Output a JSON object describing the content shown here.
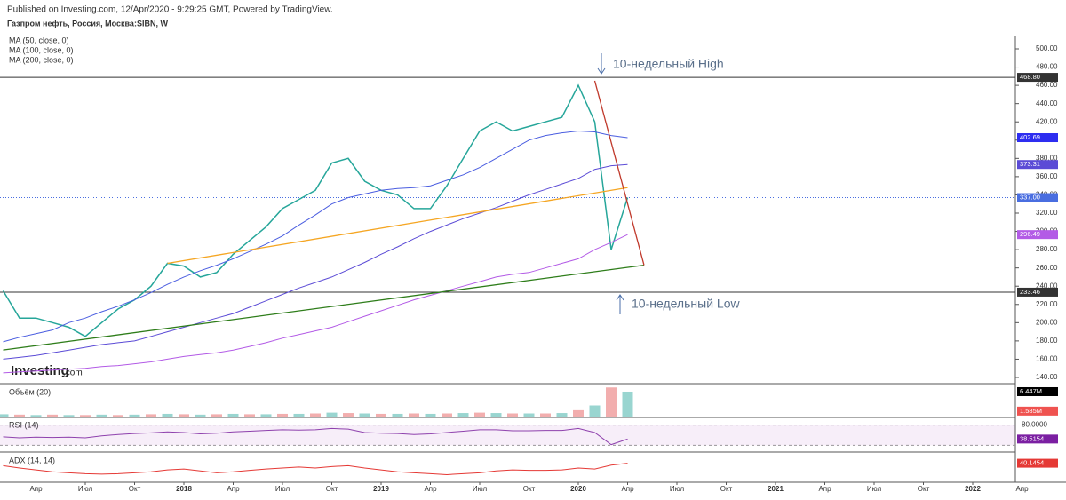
{
  "header": {
    "published": "Published on Investing.com, 12/Apr/2020 - 9:29:25 GMT, Powered by TradingView.",
    "symbol": "Газпром нефть, Россия, Москва:SIBN, W",
    "logo": "Investing",
    "logo_suffix": ".com"
  },
  "chart_data": {
    "type": "line",
    "x": [
      "2017-02",
      "2017-03",
      "2017-04",
      "2017-05",
      "2017-06",
      "2017-07",
      "2017-08",
      "2017-09",
      "2017-10",
      "2017-11",
      "2017-12",
      "2018-01",
      "2018-02",
      "2018-03",
      "2018-04",
      "2018-05",
      "2018-06",
      "2018-07",
      "2018-08",
      "2018-09",
      "2018-10",
      "2018-11",
      "2018-12",
      "2019-01",
      "2019-02",
      "2019-03",
      "2019-04",
      "2019-05",
      "2019-06",
      "2019-07",
      "2019-08",
      "2019-09",
      "2019-10",
      "2019-11",
      "2019-12",
      "2020-01",
      "2020-02",
      "2020-03",
      "2020-04"
    ],
    "series": [
      {
        "color": "#26a69a",
        "values": [
          235,
          205,
          205,
          200,
          195,
          185,
          200,
          215,
          225,
          240,
          265,
          262,
          250,
          255,
          275,
          290,
          305,
          325,
          335,
          345,
          375,
          380,
          355,
          345,
          340,
          325,
          325,
          350,
          380,
          410,
          420,
          410,
          415,
          420,
          425,
          460,
          420,
          280,
          337
        ]
      },
      {
        "name": "MA (50, close, 0)",
        "color": "#4a5de0",
        "values": [
          179,
          184,
          188,
          192,
          200,
          205,
          212,
          218,
          225,
          233,
          242,
          250,
          257,
          263,
          270,
          278,
          286,
          295,
          307,
          318,
          330,
          337,
          341,
          345,
          347,
          348,
          350,
          356,
          362,
          370,
          380,
          390,
          400,
          405,
          408,
          410,
          409,
          405,
          402.69
        ]
      },
      {
        "name": "MA (100, close, 0)",
        "color": "#5b4bd6",
        "values": [
          160,
          162,
          164,
          167,
          170,
          173,
          176,
          178,
          180,
          185,
          190,
          195,
          200,
          205,
          210,
          217,
          224,
          231,
          238,
          244,
          250,
          258,
          266,
          275,
          283,
          292,
          300,
          307,
          314,
          320,
          326,
          333,
          340,
          346,
          352,
          358,
          368,
          372,
          373.31
        ]
      },
      {
        "name": "MA (200, close, 0)",
        "color": "#b35be6",
        "values": [
          145,
          146,
          147,
          148,
          149,
          150,
          152,
          153,
          155,
          157,
          160,
          163,
          165,
          167,
          170,
          174,
          178,
          183,
          187,
          191,
          195,
          201,
          207,
          213,
          219,
          225,
          230,
          235,
          240,
          245,
          250,
          253,
          255,
          260,
          265,
          270,
          280,
          288,
          296.49
        ]
      }
    ],
    "ylim": [
      130,
      510
    ],
    "yticks": [
      {
        "value": 140,
        "label": "140.00"
      },
      {
        "value": 160,
        "label": "160.00"
      },
      {
        "value": 180,
        "label": "180.00"
      },
      {
        "value": 200,
        "label": "200.00"
      },
      {
        "value": 220,
        "label": "220.00"
      },
      {
        "value": 240,
        "label": "240.00"
      },
      {
        "value": 260,
        "label": "260.00"
      },
      {
        "value": 280,
        "label": "280.00"
      },
      {
        "value": 300,
        "label": "300.00"
      },
      {
        "value": 320,
        "label": "320.00"
      },
      {
        "value": 340,
        "label": "340.00"
      },
      {
        "value": 360,
        "label": "360.00"
      },
      {
        "value": 380,
        "label": "380.00"
      },
      {
        "value": 400,
        "label": "400.00"
      },
      {
        "value": 420,
        "label": "420.00"
      },
      {
        "value": 440,
        "label": "440.00"
      },
      {
        "value": 460,
        "label": "460.00"
      },
      {
        "value": 480,
        "label": "480.00"
      },
      {
        "value": 500,
        "label": "500.00"
      }
    ],
    "xticks": [
      {
        "value": "2017-04",
        "label": "Апр"
      },
      {
        "value": "2017-07",
        "label": "Июл"
      },
      {
        "value": "2017-10",
        "label": "Окт"
      },
      {
        "value": "2018-01",
        "label": "2018"
      },
      {
        "value": "2018-04",
        "label": "Апр"
      },
      {
        "value": "2018-07",
        "label": "Июл"
      },
      {
        "value": "2018-10",
        "label": "Окт"
      },
      {
        "value": "2019-01",
        "label": "2019"
      },
      {
        "value": "2019-04",
        "label": "Апр"
      },
      {
        "value": "2019-07",
        "label": "Июл"
      },
      {
        "value": "2019-10",
        "label": "Окт"
      },
      {
        "value": "2020-01",
        "label": "2020"
      },
      {
        "value": "2020-04",
        "label": "Апр"
      },
      {
        "value": "2020-07",
        "label": "Июл"
      },
      {
        "value": "2020-10",
        "label": "Окт"
      },
      {
        "value": "2021-01",
        "label": "2021"
      },
      {
        "value": "2021-04",
        "label": "Апр"
      },
      {
        "value": "2021-07",
        "label": "Июл"
      },
      {
        "value": "2021-10",
        "label": "Окт"
      },
      {
        "value": "2022-01",
        "label": "2022"
      },
      {
        "value": "2022-04",
        "label": "Апр"
      }
    ],
    "levels": [
      {
        "value": 468.8,
        "label": "468.80",
        "color": "#333333",
        "tag": "#333333"
      },
      {
        "value": 337,
        "label": "337.00",
        "color": "#4a6ee0",
        "tag": "#4a6ee0"
      },
      {
        "value": 233.46,
        "label": "233.46",
        "color": "#333333",
        "tag": "#333333"
      }
    ],
    "tags": [
      {
        "value": 402.69,
        "label": "402.69",
        "color": "#2d2df0"
      },
      {
        "value": 373.31,
        "label": "373.31",
        "color": "#5b4bd6"
      },
      {
        "value": 296.49,
        "label": "296.49",
        "color": "#b35be6"
      }
    ],
    "trendlines": [
      {
        "color": "#f5a623",
        "x": [
          "2017-12",
          "2020-04"
        ],
        "values": [
          265,
          348
        ]
      },
      {
        "color": "#2e7d1a",
        "x": [
          "2017-02",
          "2020-05"
        ],
        "values": [
          170,
          263
        ]
      },
      {
        "color": "#c0392b",
        "x": [
          "2020-02",
          "2020-05"
        ],
        "values": [
          465,
          263
        ]
      }
    ],
    "annotations": [
      "10-недельный High",
      "10-недельный Low"
    ],
    "volume": {
      "label": "Объём (20)",
      "values": [
        0.8,
        0.7,
        0.6,
        0.7,
        0.6,
        0.6,
        0.7,
        0.6,
        0.7,
        0.8,
        0.9,
        0.8,
        0.7,
        0.8,
        0.9,
        0.8,
        0.8,
        0.9,
        0.9,
        1,
        1.2,
        1.1,
        1,
        0.9,
        0.9,
        1,
        0.9,
        1,
        1.1,
        1.2,
        1.1,
        1,
        1,
        1,
        1.1,
        1.8,
        3,
        7.5,
        6.447
      ],
      "last": [
        {
          "value": 6.447,
          "label": "6.447M",
          "color": "#000000"
        },
        {
          "value": 1.585,
          "label": "1.585M",
          "color": "#ef5350"
        }
      ]
    },
    "rsi": {
      "label": "RSI (14)",
      "values": [
        45,
        42,
        44,
        43,
        44,
        42,
        48,
        52,
        55,
        57,
        60,
        58,
        54,
        56,
        60,
        62,
        64,
        66,
        65,
        66,
        70,
        68,
        58,
        56,
        55,
        52,
        54,
        58,
        62,
        66,
        66,
        63,
        63,
        64,
        64,
        70,
        58,
        22,
        38.5154
      ],
      "last": {
        "value": 38.5154,
        "label": "38.5154"
      },
      "ticks": [
        {
          "value": 80,
          "label": "80.0000"
        },
        {
          "value": 20,
          "label": ""
        }
      ]
    },
    "adx": {
      "label": "ADX (14, 14)",
      "values": [
        35,
        30,
        26,
        22,
        20,
        18,
        17,
        18,
        20,
        22,
        26,
        28,
        24,
        20,
        22,
        25,
        28,
        30,
        32,
        30,
        33,
        35,
        30,
        26,
        22,
        20,
        18,
        16,
        18,
        20,
        24,
        26,
        25,
        25,
        26,
        30,
        28,
        36,
        40.1454
      ],
      "last": {
        "value": 40.1454,
        "label": "40.1454"
      }
    }
  }
}
